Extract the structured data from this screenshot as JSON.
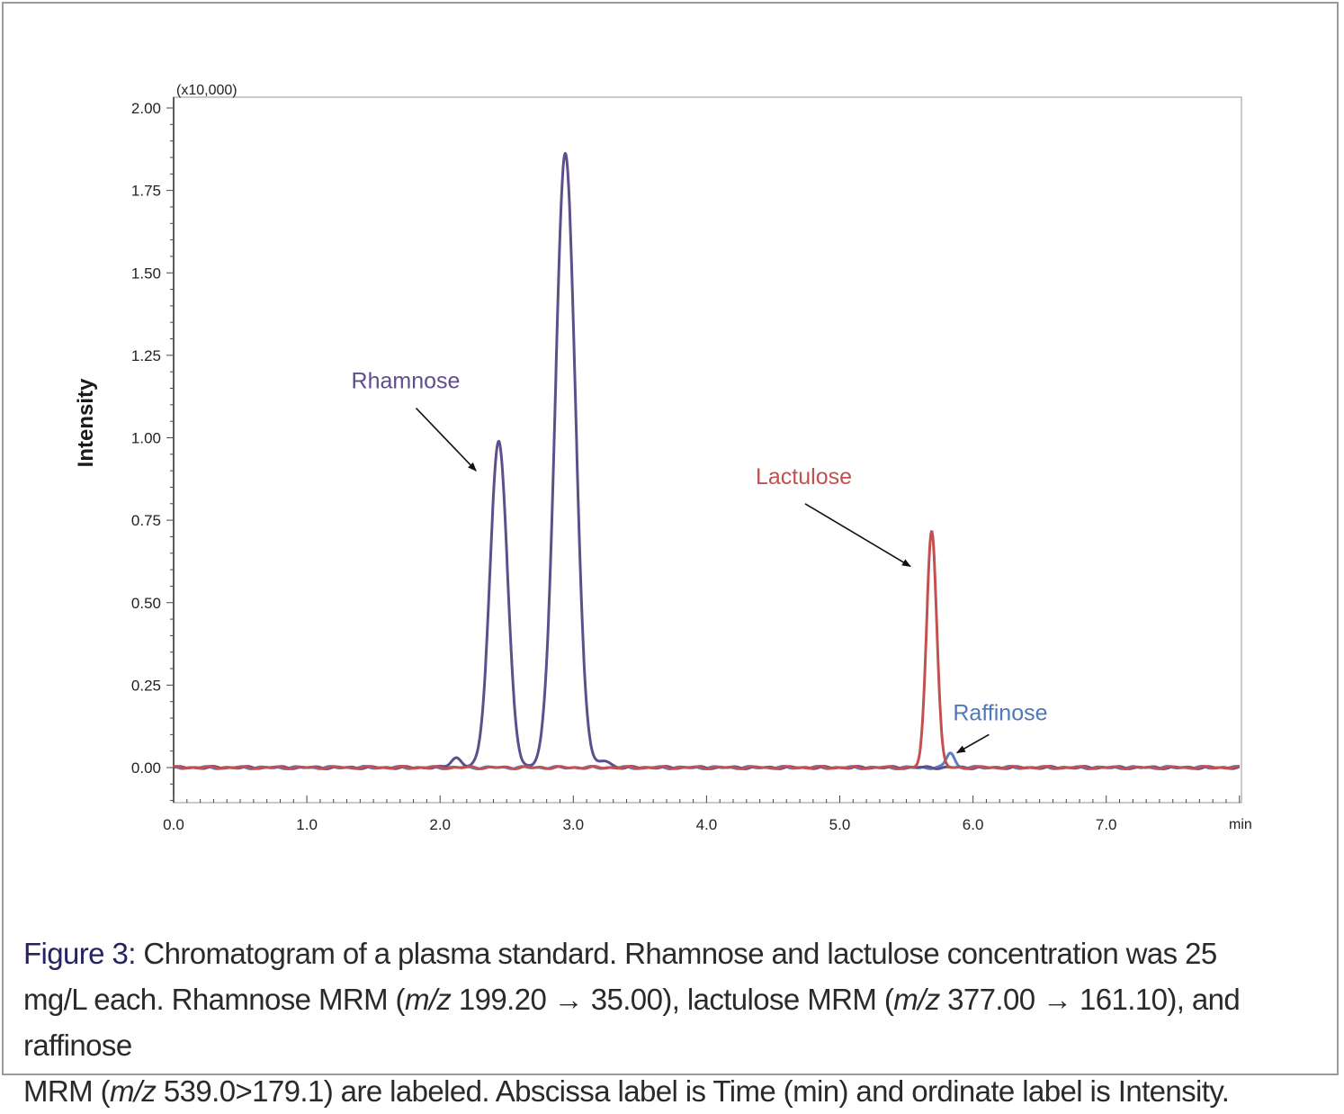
{
  "chart_data": {
    "type": "line",
    "ylabel": "Intensity",
    "y_multiplier": "(x10,000)",
    "x_unit": "min",
    "xlim": [
      0.0,
      8.0
    ],
    "ylim": [
      -0.1,
      2.0
    ],
    "x_ticks": [
      {
        "value": 0.0,
        "label": "0.0"
      },
      {
        "value": 1.0,
        "label": "1.0"
      },
      {
        "value": 2.0,
        "label": "2.0"
      },
      {
        "value": 3.0,
        "label": "3.0"
      },
      {
        "value": 4.0,
        "label": "4.0"
      },
      {
        "value": 5.0,
        "label": "5.0"
      },
      {
        "value": 6.0,
        "label": "6.0"
      },
      {
        "value": 7.0,
        "label": "7.0"
      }
    ],
    "y_ticks": [
      {
        "value": 0.0,
        "label": "0.00"
      },
      {
        "value": 0.25,
        "label": "0.25"
      },
      {
        "value": 0.5,
        "label": "0.50"
      },
      {
        "value": 0.75,
        "label": "0.75"
      },
      {
        "value": 1.0,
        "label": "1.00"
      },
      {
        "value": 1.25,
        "label": "1.25"
      },
      {
        "value": 1.5,
        "label": "1.50"
      },
      {
        "value": 1.75,
        "label": "1.75"
      },
      {
        "value": 2.0,
        "label": "2.00"
      }
    ],
    "grid": false,
    "series": [
      {
        "name": "Rhamnose",
        "color": "#5e4f8c",
        "peaks": [
          {
            "x": 2.12,
            "height": 0.03,
            "width": 0.04
          },
          {
            "x": 2.44,
            "height": 0.99,
            "width": 0.065
          },
          {
            "x": 2.94,
            "height": 1.86,
            "width": 0.075
          },
          {
            "x": 3.24,
            "height": 0.02,
            "width": 0.04
          }
        ]
      },
      {
        "name": "Lactulose",
        "color": "#c2504f",
        "peaks": [
          {
            "x": 5.69,
            "height": 0.72,
            "width": 0.038
          }
        ]
      },
      {
        "name": "Raffinose",
        "color": "#5a7fbf",
        "peaks": [
          {
            "x": 5.83,
            "height": 0.045,
            "width": 0.03
          }
        ]
      }
    ],
    "annotations": [
      {
        "text": "Rhamnose",
        "color": "#5e4f8c",
        "x_from": 1.82,
        "y_from": 1.09,
        "x_to": 2.27,
        "y_to": 0.9
      },
      {
        "text": "Lactulose",
        "color": "#c2504f",
        "x_from": 4.74,
        "y_from": 0.8,
        "x_to": 5.53,
        "y_to": 0.61
      },
      {
        "text": "Raffinose",
        "color": "#4e78b8",
        "x_from": 6.12,
        "y_from": 0.1,
        "x_to": 5.88,
        "y_to": 0.045
      }
    ]
  },
  "caption": {
    "label": "Figure 3:",
    "line1": " Chromatogram of a plasma standard. Rhamnose and lactulose concentration was 25",
    "line2a": "mg/L each.  Rhamnose MRM (",
    "mz": "m/z",
    "line2b": " 199.20 → 35.00), lactulose MRM (",
    "line2c": " 377.00 → 161.10), and raffinose",
    "line3a": "MRM (",
    "line3b": " 539.0>179.1) are labeled. Abscissa label is Time (min) and ordinate label is Intensity."
  }
}
